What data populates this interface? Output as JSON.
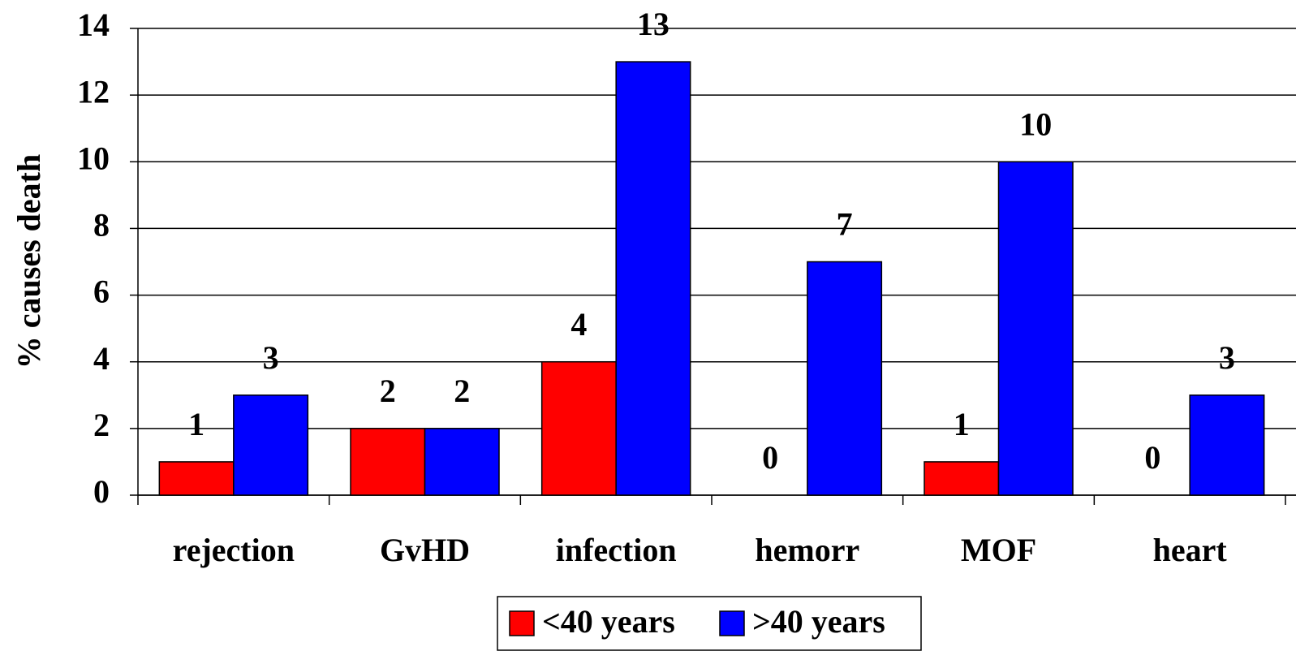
{
  "chart_data": {
    "type": "bar",
    "y_label": "% causes death",
    "categories": [
      "rejection",
      "GvHD",
      "infection",
      "hemorr",
      "MOF",
      "heart"
    ],
    "series": [
      {
        "name": "<40 years",
        "color": "#ff0000",
        "values": [
          1,
          2,
          4,
          0,
          1,
          0
        ]
      },
      {
        "name": ">40 years",
        "color": "#0000ff",
        "values": [
          3,
          2,
          13,
          7,
          10,
          3
        ]
      }
    ],
    "ylim": [
      0,
      14
    ],
    "yticks": [
      0,
      2,
      4,
      6,
      8,
      10,
      12,
      14
    ],
    "grid": true,
    "data_labels": true,
    "legend": "bottom"
  }
}
